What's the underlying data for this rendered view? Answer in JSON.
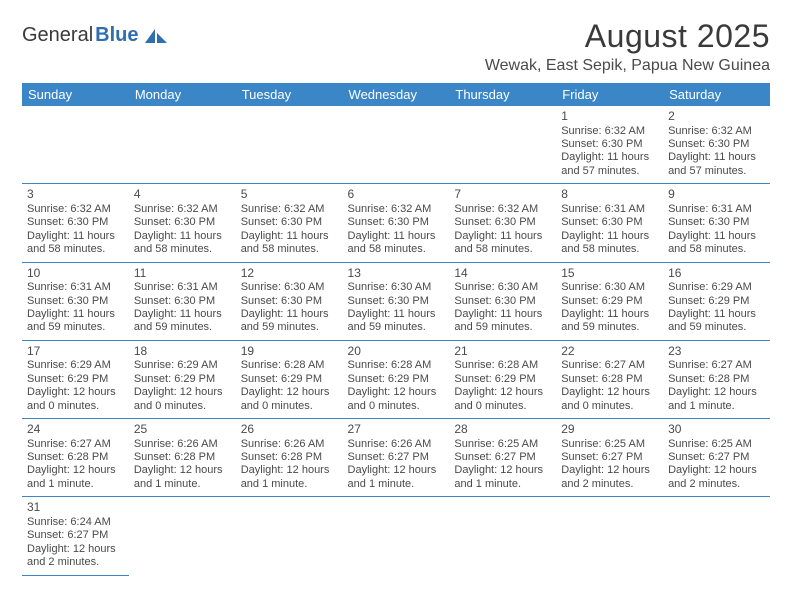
{
  "brand": {
    "text_a": "General",
    "text_b": "Blue"
  },
  "title": "August 2025",
  "location": "Wewak, East Sepik, Papua New Guinea",
  "colors": {
    "header_bg": "#3b86c7",
    "header_text": "#ffffff",
    "cell_border": "#3b86c7",
    "body_text": "#4a4a4a",
    "brand_blue": "#2f6fb0",
    "brand_gray": "#3a3a3a",
    "page_bg": "#ffffff"
  },
  "typography": {
    "title_fontsize": 32,
    "location_fontsize": 16,
    "weekday_fontsize": 13,
    "cell_fontsize": 11,
    "daynum_fontsize": 12,
    "logo_fontsize": 20
  },
  "weekdays": [
    "Sunday",
    "Monday",
    "Tuesday",
    "Wednesday",
    "Thursday",
    "Friday",
    "Saturday"
  ],
  "first_weekday_index": 5,
  "days": [
    {
      "n": 1,
      "sunrise": "6:32 AM",
      "sunset": "6:30 PM",
      "daylight": "11 hours and 57 minutes."
    },
    {
      "n": 2,
      "sunrise": "6:32 AM",
      "sunset": "6:30 PM",
      "daylight": "11 hours and 57 minutes."
    },
    {
      "n": 3,
      "sunrise": "6:32 AM",
      "sunset": "6:30 PM",
      "daylight": "11 hours and 58 minutes."
    },
    {
      "n": 4,
      "sunrise": "6:32 AM",
      "sunset": "6:30 PM",
      "daylight": "11 hours and 58 minutes."
    },
    {
      "n": 5,
      "sunrise": "6:32 AM",
      "sunset": "6:30 PM",
      "daylight": "11 hours and 58 minutes."
    },
    {
      "n": 6,
      "sunrise": "6:32 AM",
      "sunset": "6:30 PM",
      "daylight": "11 hours and 58 minutes."
    },
    {
      "n": 7,
      "sunrise": "6:32 AM",
      "sunset": "6:30 PM",
      "daylight": "11 hours and 58 minutes."
    },
    {
      "n": 8,
      "sunrise": "6:31 AM",
      "sunset": "6:30 PM",
      "daylight": "11 hours and 58 minutes."
    },
    {
      "n": 9,
      "sunrise": "6:31 AM",
      "sunset": "6:30 PM",
      "daylight": "11 hours and 58 minutes."
    },
    {
      "n": 10,
      "sunrise": "6:31 AM",
      "sunset": "6:30 PM",
      "daylight": "11 hours and 59 minutes."
    },
    {
      "n": 11,
      "sunrise": "6:31 AM",
      "sunset": "6:30 PM",
      "daylight": "11 hours and 59 minutes."
    },
    {
      "n": 12,
      "sunrise": "6:30 AM",
      "sunset": "6:30 PM",
      "daylight": "11 hours and 59 minutes."
    },
    {
      "n": 13,
      "sunrise": "6:30 AM",
      "sunset": "6:30 PM",
      "daylight": "11 hours and 59 minutes."
    },
    {
      "n": 14,
      "sunrise": "6:30 AM",
      "sunset": "6:30 PM",
      "daylight": "11 hours and 59 minutes."
    },
    {
      "n": 15,
      "sunrise": "6:30 AM",
      "sunset": "6:29 PM",
      "daylight": "11 hours and 59 minutes."
    },
    {
      "n": 16,
      "sunrise": "6:29 AM",
      "sunset": "6:29 PM",
      "daylight": "11 hours and 59 minutes."
    },
    {
      "n": 17,
      "sunrise": "6:29 AM",
      "sunset": "6:29 PM",
      "daylight": "12 hours and 0 minutes."
    },
    {
      "n": 18,
      "sunrise": "6:29 AM",
      "sunset": "6:29 PM",
      "daylight": "12 hours and 0 minutes."
    },
    {
      "n": 19,
      "sunrise": "6:28 AM",
      "sunset": "6:29 PM",
      "daylight": "12 hours and 0 minutes."
    },
    {
      "n": 20,
      "sunrise": "6:28 AM",
      "sunset": "6:29 PM",
      "daylight": "12 hours and 0 minutes."
    },
    {
      "n": 21,
      "sunrise": "6:28 AM",
      "sunset": "6:29 PM",
      "daylight": "12 hours and 0 minutes."
    },
    {
      "n": 22,
      "sunrise": "6:27 AM",
      "sunset": "6:28 PM",
      "daylight": "12 hours and 0 minutes."
    },
    {
      "n": 23,
      "sunrise": "6:27 AM",
      "sunset": "6:28 PM",
      "daylight": "12 hours and 1 minute."
    },
    {
      "n": 24,
      "sunrise": "6:27 AM",
      "sunset": "6:28 PM",
      "daylight": "12 hours and 1 minute."
    },
    {
      "n": 25,
      "sunrise": "6:26 AM",
      "sunset": "6:28 PM",
      "daylight": "12 hours and 1 minute."
    },
    {
      "n": 26,
      "sunrise": "6:26 AM",
      "sunset": "6:28 PM",
      "daylight": "12 hours and 1 minute."
    },
    {
      "n": 27,
      "sunrise": "6:26 AM",
      "sunset": "6:27 PM",
      "daylight": "12 hours and 1 minute."
    },
    {
      "n": 28,
      "sunrise": "6:25 AM",
      "sunset": "6:27 PM",
      "daylight": "12 hours and 1 minute."
    },
    {
      "n": 29,
      "sunrise": "6:25 AM",
      "sunset": "6:27 PM",
      "daylight": "12 hours and 2 minutes."
    },
    {
      "n": 30,
      "sunrise": "6:25 AM",
      "sunset": "6:27 PM",
      "daylight": "12 hours and 2 minutes."
    },
    {
      "n": 31,
      "sunrise": "6:24 AM",
      "sunset": "6:27 PM",
      "daylight": "12 hours and 2 minutes."
    }
  ],
  "labels": {
    "sunrise": "Sunrise:",
    "sunset": "Sunset:",
    "daylight": "Daylight:"
  }
}
